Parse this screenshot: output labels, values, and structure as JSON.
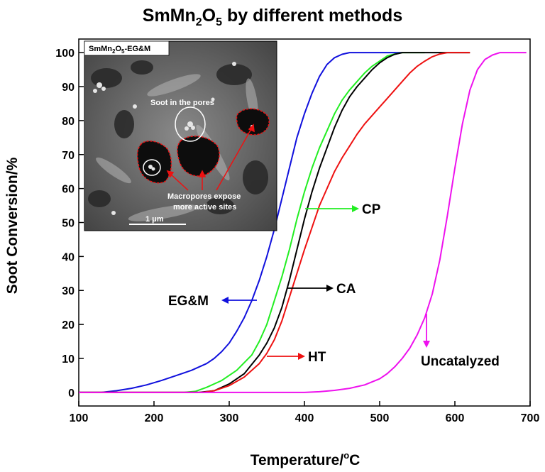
{
  "chart_data": {
    "type": "line",
    "title": "SmMn2O5 by different methods",
    "title_main": "SmMn",
    "title_sub1": "2",
    "title_mid": "O",
    "title_sub2": "5",
    "title_rest": " by different methods",
    "xlabel": "Temperature/°C",
    "xlabel_main": "Temperature/",
    "xlabel_sup": "o",
    "xlabel_unit": "C",
    "ylabel": "Soot Conversion/%",
    "xlim": [
      100,
      700
    ],
    "ylim": [
      -4,
      104
    ],
    "x_ticks": [
      100,
      200,
      300,
      400,
      500,
      600,
      700
    ],
    "y_ticks": [
      0,
      10,
      20,
      30,
      40,
      50,
      60,
      70,
      80,
      90,
      100
    ],
    "grid": false,
    "series": [
      {
        "name": "EG&M",
        "color": "#1010dd",
        "x": [
          100,
          130,
          150,
          170,
          190,
          210,
          230,
          250,
          270,
          280,
          290,
          300,
          310,
          320,
          330,
          340,
          350,
          360,
          370,
          380,
          390,
          400,
          410,
          420,
          430,
          440,
          450,
          460,
          470,
          500,
          530
        ],
        "y": [
          0,
          0,
          0.5,
          1.2,
          2.2,
          3.5,
          5.0,
          6.5,
          8.5,
          10,
          12,
          14.5,
          18,
          22,
          27,
          33,
          40,
          48,
          57,
          66,
          75,
          82,
          88,
          93,
          96.5,
          98.5,
          99.5,
          100,
          100,
          100,
          100
        ]
      },
      {
        "name": "CP",
        "color": "#22ee22",
        "x": [
          100,
          240,
          255,
          270,
          290,
          310,
          330,
          340,
          350,
          360,
          370,
          380,
          390,
          400,
          410,
          420,
          430,
          440,
          450,
          460,
          470,
          480,
          490,
          500,
          510,
          520,
          530,
          540,
          560
        ],
        "y": [
          0,
          0,
          0.3,
          1.5,
          3.5,
          6.5,
          11,
          15,
          20,
          27,
          34,
          42,
          51,
          59,
          66,
          72,
          77,
          82,
          86,
          89,
          91.5,
          94,
          96,
          97.5,
          99,
          99.6,
          100,
          100,
          100
        ]
      },
      {
        "name": "CA",
        "color": "#000000",
        "x": [
          100,
          260,
          280,
          300,
          320,
          340,
          350,
          360,
          370,
          380,
          390,
          400,
          410,
          420,
          430,
          440,
          450,
          460,
          470,
          480,
          490,
          500,
          510,
          520,
          530,
          540,
          560,
          600,
          620
        ],
        "y": [
          0,
          0,
          0.5,
          2.5,
          5.5,
          11,
          14.5,
          19,
          25,
          33,
          42,
          51,
          59,
          66,
          72,
          78,
          83,
          87,
          90,
          92.5,
          95,
          97,
          98.5,
          99.5,
          100,
          100,
          100,
          100,
          100
        ]
      },
      {
        "name": "HT",
        "color": "#ee1111",
        "x": [
          100,
          265,
          280,
          300,
          320,
          340,
          350,
          360,
          370,
          380,
          390,
          400,
          410,
          420,
          430,
          440,
          450,
          460,
          470,
          480,
          490,
          500,
          510,
          520,
          530,
          540,
          550,
          560,
          570,
          580,
          590,
          600,
          610,
          620
        ],
        "y": [
          0,
          0,
          0.5,
          2,
          4.5,
          8.5,
          11.5,
          15.5,
          21,
          28,
          35,
          42,
          48.5,
          55,
          60,
          65,
          69,
          72.5,
          76,
          79,
          81.5,
          84,
          86.5,
          89,
          91.5,
          94,
          96,
          97.5,
          98.8,
          99.6,
          100,
          100,
          100,
          100
        ]
      },
      {
        "name": "Uncatalyzed",
        "color": "#ee11ee",
        "x": [
          100,
          400,
          420,
          440,
          460,
          480,
          500,
          510,
          520,
          530,
          540,
          550,
          560,
          570,
          580,
          590,
          600,
          610,
          620,
          630,
          640,
          650,
          660,
          670,
          680,
          690,
          695
        ],
        "y": [
          0,
          0,
          0.2,
          0.6,
          1.2,
          2.2,
          4.0,
          5.5,
          7.5,
          10,
          13,
          17,
          22,
          29,
          39,
          52,
          66,
          79,
          89,
          95,
          98,
          99.3,
          100,
          100,
          100,
          100,
          100
        ]
      }
    ],
    "annotations": [
      {
        "label": "EG&M",
        "series": "EG&M",
        "arrow_color": "#1010dd"
      },
      {
        "label": "CP",
        "series": "CP",
        "arrow_color": "#22ee22"
      },
      {
        "label": "CA",
        "series": "CA",
        "arrow_color": "#000000"
      },
      {
        "label": "HT",
        "series": "HT",
        "arrow_color": "#ee1111"
      },
      {
        "label": "Uncatalyzed",
        "series": "Uncatalyzed",
        "arrow_color": "#ee11ee"
      }
    ]
  },
  "inset": {
    "title_main": "SmMn",
    "title_sub1": "2",
    "title_mid": "O",
    "title_sub2": "5",
    "title_rest": "-EG&M",
    "caption_soot": "Soot in the pores",
    "caption_macro_1": "Macropores expose",
    "caption_macro_2": "more active sites",
    "scale_bar": "1 μm"
  }
}
